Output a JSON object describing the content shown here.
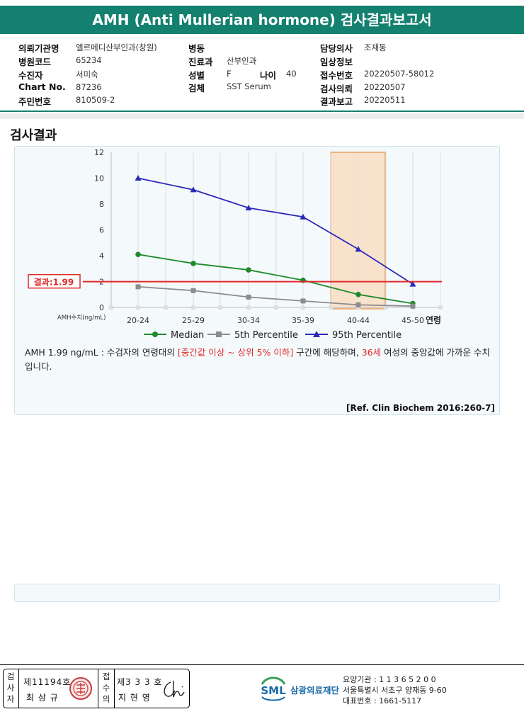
{
  "title": "AMH (Anti Mullerian hormone) 검사결과보고서",
  "info": {
    "col1": [
      {
        "key": "의뢰기관명",
        "value": "엘르메디산부인과(창원)"
      },
      {
        "key": "병원코드",
        "value": "65234"
      },
      {
        "key": "수진자",
        "value": "서미숙"
      },
      {
        "key": "Chart No.",
        "value": "87236"
      },
      {
        "key": "주민번호",
        "value": "810509-2"
      }
    ],
    "col2": [
      {
        "key": "병동",
        "value": ""
      },
      {
        "key": "진료과",
        "value": "산부인과"
      },
      {
        "key": "성별",
        "value": "F"
      },
      {
        "key": "검체",
        "value": "SST Serum"
      }
    ],
    "age": {
      "key": "나이",
      "value": "40"
    },
    "col3": [
      {
        "key": "담당의사",
        "value": "조재동"
      },
      {
        "key": "임상정보",
        "value": ""
      },
      {
        "key": "접수번호",
        "value": "20220507-58012"
      },
      {
        "key": "검사의뢰",
        "value": "20220507"
      },
      {
        "key": "결과보고",
        "value": "20220511"
      }
    ]
  },
  "section_title": "검사결과",
  "chart_data": {
    "type": "line",
    "categories": [
      "20-24",
      "25-29",
      "30-34",
      "35-39",
      "40-44",
      "45-50"
    ],
    "xlabel": "연령",
    "ylabel": "AMH수치(ng/mL)",
    "ylim": [
      0,
      12
    ],
    "yticks": [
      "0",
      "2",
      "4",
      "6",
      "8",
      "10",
      "12"
    ],
    "series": [
      {
        "name": "Median",
        "color": "#1e8a2a",
        "marker": "circle",
        "values": [
          4.1,
          3.4,
          2.9,
          2.1,
          1.0,
          0.3
        ]
      },
      {
        "name": "5th Percentile",
        "color": "#8c8c8c",
        "marker": "square",
        "values": [
          1.6,
          1.3,
          0.8,
          0.5,
          0.2,
          0.1
        ]
      },
      {
        "name": "95th Percentile",
        "color": "#2b2bb8",
        "marker": "triangle",
        "values": [
          10.0,
          9.1,
          7.7,
          7.0,
          4.5,
          1.8
        ]
      }
    ],
    "result": {
      "label": "결과:1.99",
      "value": 1.99,
      "color": "#e02a2a"
    },
    "highlight_category": "40-44",
    "highlight_color": "#f9e2cc",
    "grid": "vertical"
  },
  "comment": {
    "p1": "AMH  1.99 ng/mL : 수검자의 연령대의 ",
    "red1": "[중간값 이상 ~ 상위 5% 이하]",
    "p2": "  구간에 해당하며, ",
    "red2": "36세",
    "p3": " 여성의 중앙값에 가까운 수치입니다."
  },
  "reference": "[Ref. Clin Biochem 2016:260-7]",
  "footer": {
    "tester_label": "검사자",
    "tester_no": "제11194호",
    "tester_name": "최 삼 규",
    "reviewer_label": "접수의",
    "reviewer_no": "제3 3 3 호",
    "reviewer_name": "지 현 영",
    "org_abbr": "SML",
    "org_name": "삼광의료재단",
    "org_line1": "요양기관 : 1 1 3 6 5 2 0 0",
    "org_line2": "서울특별시 서초구 양재동 9-60",
    "org_line3": "대표번호 : 1661-5117"
  }
}
